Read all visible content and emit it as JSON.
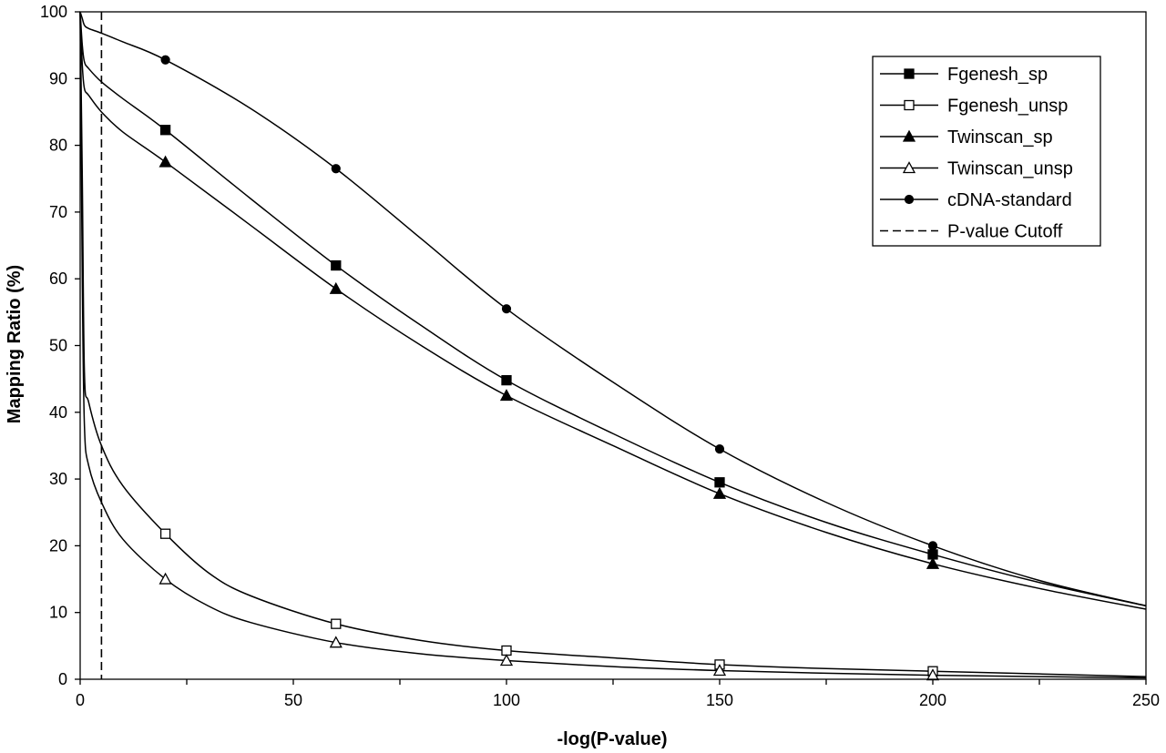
{
  "chart_data": {
    "type": "line",
    "title": "",
    "xlabel": "-log(P-value)",
    "ylabel": "Mapping Ratio (%)",
    "xlim": [
      0,
      250
    ],
    "ylim": [
      0,
      100
    ],
    "x_ticks": [
      0,
      50,
      100,
      150,
      200,
      250
    ],
    "y_ticks": [
      0,
      10,
      20,
      30,
      40,
      50,
      60,
      70,
      80,
      90,
      100
    ],
    "grid": false,
    "legend_position": "top-right",
    "cutoff": {
      "name": "P-value Cutoff",
      "x": 5
    },
    "series": [
      {
        "name": "Fgenesh_sp",
        "marker": "square-filled",
        "curve": [
          [
            0,
            100
          ],
          [
            0.5,
            95
          ],
          [
            1,
            92.5
          ],
          [
            2,
            91.5
          ],
          [
            5,
            89.5
          ],
          [
            10,
            87
          ],
          [
            20,
            82.3
          ],
          [
            40,
            72
          ],
          [
            60,
            62
          ],
          [
            80,
            53
          ],
          [
            100,
            44.8
          ],
          [
            125,
            36.8
          ],
          [
            150,
            29.5
          ],
          [
            175,
            23.5
          ],
          [
            200,
            18.7
          ],
          [
            225,
            14.5
          ],
          [
            250,
            11
          ]
        ],
        "markers": [
          [
            20,
            82.3
          ],
          [
            60,
            62
          ],
          [
            100,
            44.8
          ],
          [
            150,
            29.5
          ],
          [
            200,
            18.7
          ]
        ]
      },
      {
        "name": "Fgenesh_unsp",
        "marker": "square-open",
        "curve": [
          [
            0,
            100
          ],
          [
            0.5,
            75
          ],
          [
            1,
            46
          ],
          [
            2,
            41.5
          ],
          [
            5,
            35
          ],
          [
            10,
            29
          ],
          [
            20,
            21.8
          ],
          [
            30,
            16
          ],
          [
            40,
            12.5
          ],
          [
            60,
            8.3
          ],
          [
            80,
            5.8
          ],
          [
            100,
            4.3
          ],
          [
            125,
            3.2
          ],
          [
            150,
            2.2
          ],
          [
            175,
            1.6
          ],
          [
            200,
            1.2
          ],
          [
            225,
            0.8
          ],
          [
            250,
            0.4
          ]
        ],
        "markers": [
          [
            20,
            21.8
          ],
          [
            60,
            8.3
          ],
          [
            100,
            4.3
          ],
          [
            150,
            2.2
          ],
          [
            200,
            1.2
          ]
        ]
      },
      {
        "name": "Twinscan_sp",
        "marker": "triangle-filled",
        "curve": [
          [
            0,
            100
          ],
          [
            0.5,
            92
          ],
          [
            1,
            88.5
          ],
          [
            2,
            87.5
          ],
          [
            5,
            85
          ],
          [
            10,
            82
          ],
          [
            20,
            77.5
          ],
          [
            40,
            68
          ],
          [
            60,
            58.5
          ],
          [
            80,
            50
          ],
          [
            100,
            42.5
          ],
          [
            125,
            35
          ],
          [
            150,
            27.8
          ],
          [
            175,
            22
          ],
          [
            200,
            17.3
          ],
          [
            225,
            13.6
          ],
          [
            250,
            10.5
          ]
        ],
        "markers": [
          [
            20,
            77.5
          ],
          [
            60,
            58.5
          ],
          [
            100,
            42.5
          ],
          [
            150,
            27.8
          ],
          [
            200,
            17.3
          ]
        ]
      },
      {
        "name": "Twinscan_unsp",
        "marker": "triangle-open",
        "curve": [
          [
            0,
            100
          ],
          [
            0.5,
            60
          ],
          [
            1,
            38
          ],
          [
            2,
            32
          ],
          [
            5,
            26.5
          ],
          [
            10,
            21
          ],
          [
            20,
            15
          ],
          [
            30,
            11
          ],
          [
            40,
            8.5
          ],
          [
            60,
            5.5
          ],
          [
            80,
            3.8
          ],
          [
            100,
            2.8
          ],
          [
            125,
            1.9
          ],
          [
            150,
            1.3
          ],
          [
            175,
            0.9
          ],
          [
            200,
            0.6
          ],
          [
            225,
            0.4
          ],
          [
            250,
            0.2
          ]
        ],
        "markers": [
          [
            20,
            15
          ],
          [
            60,
            5.5
          ],
          [
            100,
            2.8
          ],
          [
            150,
            1.3
          ],
          [
            200,
            0.6
          ]
        ]
      },
      {
        "name": "cDNA-standard",
        "marker": "circle-filled",
        "curve": [
          [
            0,
            100
          ],
          [
            0.5,
            99
          ],
          [
            1,
            98
          ],
          [
            2,
            97.5
          ],
          [
            5,
            96.8
          ],
          [
            10,
            95.5
          ],
          [
            20,
            92.8
          ],
          [
            40,
            85.5
          ],
          [
            60,
            76.5
          ],
          [
            80,
            66
          ],
          [
            100,
            55.5
          ],
          [
            125,
            44.5
          ],
          [
            150,
            34.5
          ],
          [
            175,
            26.5
          ],
          [
            200,
            20
          ],
          [
            225,
            14.8
          ],
          [
            250,
            11
          ]
        ],
        "markers": [
          [
            20,
            92.8
          ],
          [
            60,
            76.5
          ],
          [
            100,
            55.5
          ],
          [
            150,
            34.5
          ],
          [
            200,
            20
          ]
        ]
      }
    ]
  }
}
